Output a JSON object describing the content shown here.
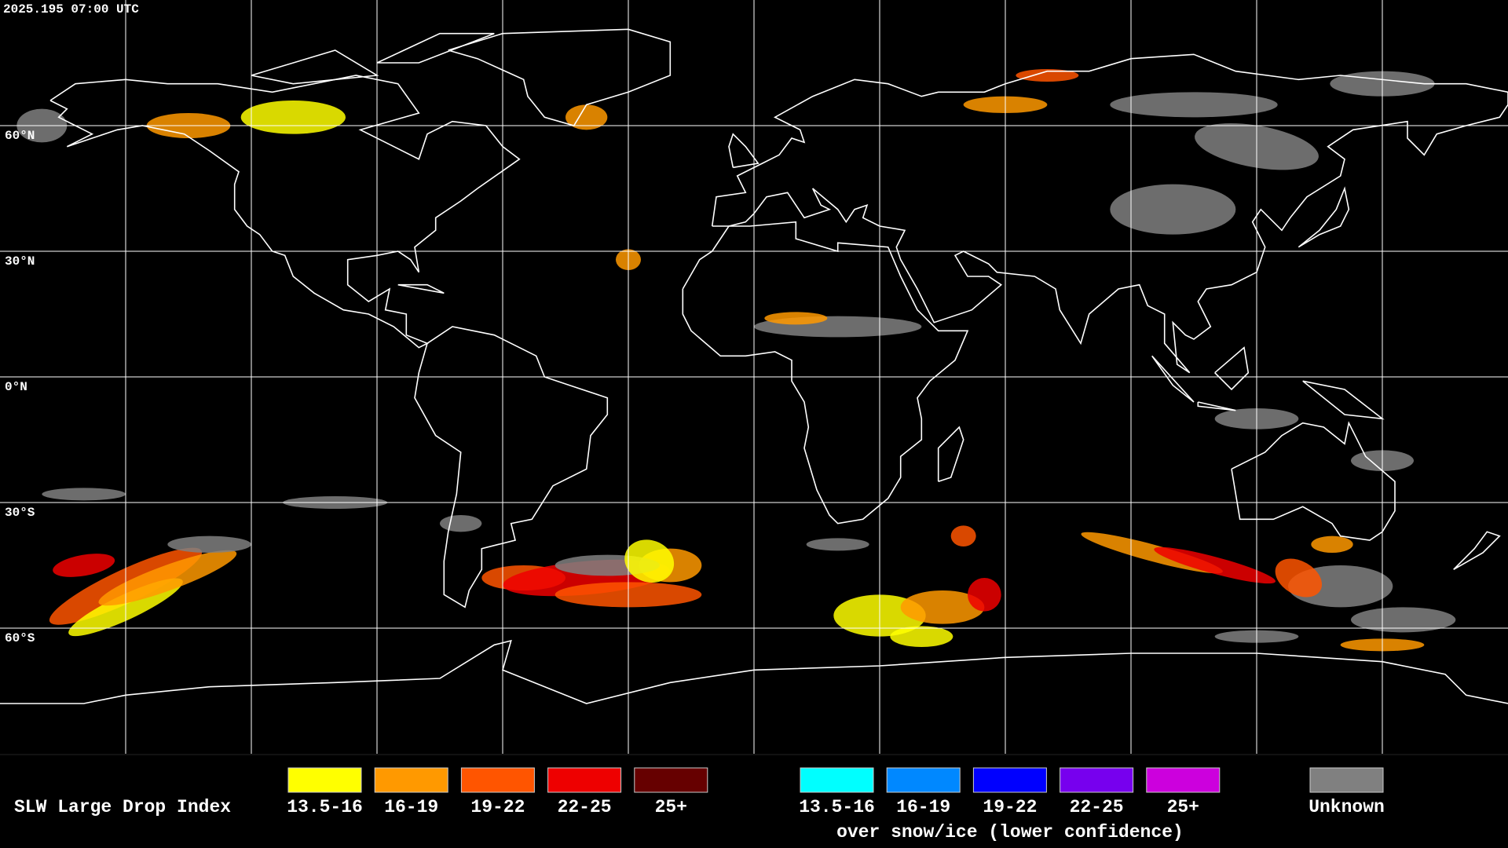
{
  "header": {
    "timestamp": "2025.195 07:00 UTC"
  },
  "map": {
    "latitude_labels": [
      {
        "value": 60,
        "label": "60°N"
      },
      {
        "value": 30,
        "label": "30°N"
      },
      {
        "value": 0,
        "label": "0°N"
      },
      {
        "value": -30,
        "label": "30°S"
      },
      {
        "value": -60,
        "label": "60°S"
      }
    ]
  },
  "legend": {
    "title": "SLW Large Drop Index",
    "groups": [
      {
        "items": [
          {
            "label": "13.5-16",
            "color": "#ffff00"
          },
          {
            "label": "16-19",
            "color": "#ff9900"
          },
          {
            "label": "19-22",
            "color": "#ff5500"
          },
          {
            "label": "22-25",
            "color": "#ee0000"
          },
          {
            "label": "25+",
            "color": "#660000"
          }
        ]
      },
      {
        "items": [
          {
            "label": "13.5-16",
            "color": "#00ffff"
          },
          {
            "label": "16-19",
            "color": "#0088ff"
          },
          {
            "label": "19-22",
            "color": "#0000ff"
          },
          {
            "label": "22-25",
            "color": "#7700ee"
          },
          {
            "label": "25+",
            "color": "#cc00dd"
          }
        ],
        "caption": "over snow/ice (lower confidence)"
      },
      {
        "items": [
          {
            "label": "Unknown",
            "color": "#808080"
          }
        ]
      }
    ]
  }
}
